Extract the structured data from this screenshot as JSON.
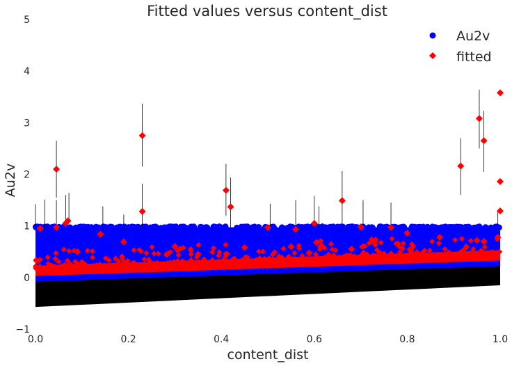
{
  "chart_data": {
    "type": "scatter",
    "title": "Fitted values versus content_dist",
    "xlabel": "content_dist",
    "ylabel": "Au2v",
    "xlim": [
      0.0,
      1.0
    ],
    "ylim": [
      -1,
      5
    ],
    "xticks": [
      "0.0",
      "0.2",
      "0.4",
      "0.6",
      "0.8",
      "1.0"
    ],
    "yticks": [
      "−1",
      "0",
      "1",
      "2",
      "3",
      "4",
      "5"
    ],
    "grid": false,
    "legend_position": "top-right",
    "series": [
      {
        "name": "Au2v",
        "marker": "circle",
        "color": "#0000ff",
        "description_band": {
          "y_min_at_x0": -0.08,
          "y_min_at_x1": 0.22,
          "y_max": 1.0
        }
      },
      {
        "name": "fitted",
        "marker": "diamond",
        "color": "#ff0000",
        "baseline_at_x0": 0.03,
        "baseline_at_x1": 0.33,
        "outliers": [
          {
            "x": 0.045,
            "y": 2.1
          },
          {
            "x": 0.23,
            "y": 2.75
          },
          {
            "x": 0.23,
            "y": 1.28
          },
          {
            "x": 0.41,
            "y": 1.69
          },
          {
            "x": 0.42,
            "y": 1.37
          },
          {
            "x": 0.66,
            "y": 1.49
          },
          {
            "x": 0.915,
            "y": 2.16
          },
          {
            "x": 0.955,
            "y": 3.08
          },
          {
            "x": 0.965,
            "y": 2.65
          },
          {
            "x": 1.0,
            "y": 3.58
          },
          {
            "x": 1.0,
            "y": 1.86
          },
          {
            "x": 1.0,
            "y": 1.29
          },
          {
            "x": 0.01,
            "y": 0.95
          },
          {
            "x": 0.045,
            "y": 0.97
          },
          {
            "x": 0.065,
            "y": 1.05
          },
          {
            "x": 0.07,
            "y": 1.1
          },
          {
            "x": 0.5,
            "y": 0.97
          },
          {
            "x": 0.56,
            "y": 0.93
          },
          {
            "x": 0.6,
            "y": 1.05
          },
          {
            "x": 0.7,
            "y": 0.98
          },
          {
            "x": 0.765,
            "y": 0.97
          },
          {
            "x": 0.14,
            "y": 0.84
          },
          {
            "x": 0.19,
            "y": 0.69
          },
          {
            "x": 0.09,
            "y": 0.5
          },
          {
            "x": 0.3,
            "y": 0.6
          },
          {
            "x": 0.35,
            "y": 0.45
          },
          {
            "x": 0.45,
            "y": 0.58
          },
          {
            "x": 0.55,
            "y": 0.6
          },
          {
            "x": 0.605,
            "y": 0.68
          },
          {
            "x": 0.615,
            "y": 0.62
          },
          {
            "x": 0.68,
            "y": 0.55
          },
          {
            "x": 0.73,
            "y": 0.7
          },
          {
            "x": 0.8,
            "y": 0.86
          },
          {
            "x": 0.87,
            "y": 0.78
          },
          {
            "x": 0.95,
            "y": 0.72
          },
          {
            "x": 0.965,
            "y": 0.7
          },
          {
            "x": 0.995,
            "y": 0.78
          }
        ]
      }
    ],
    "error_band": {
      "color": "#000000",
      "lower_at_x0": -0.57,
      "lower_at_x1": -0.15
    },
    "error_bars": [
      {
        "x": 0.0,
        "lo": 0.96,
        "hi": 1.42
      },
      {
        "x": 0.02,
        "lo": 0.96,
        "hi": 1.51
      },
      {
        "x": 0.045,
        "lo": 1.55,
        "hi": 2.65
      },
      {
        "x": 0.045,
        "lo": 0.98,
        "hi": 1.5
      },
      {
        "x": 0.065,
        "lo": 1.05,
        "hi": 1.6
      },
      {
        "x": 0.072,
        "lo": 1.1,
        "hi": 1.64
      },
      {
        "x": 0.145,
        "lo": 0.9,
        "hi": 1.38
      },
      {
        "x": 0.19,
        "lo": 0.9,
        "hi": 1.22
      },
      {
        "x": 0.23,
        "lo": 2.15,
        "hi": 3.37
      },
      {
        "x": 0.23,
        "lo": 0.96,
        "hi": 1.82
      },
      {
        "x": 0.41,
        "lo": 1.2,
        "hi": 2.2
      },
      {
        "x": 0.42,
        "lo": 0.96,
        "hi": 1.94
      },
      {
        "x": 0.505,
        "lo": 0.96,
        "hi": 1.43
      },
      {
        "x": 0.56,
        "lo": 0.96,
        "hi": 1.5
      },
      {
        "x": 0.6,
        "lo": 0.96,
        "hi": 1.58
      },
      {
        "x": 0.61,
        "lo": 0.96,
        "hi": 1.38
      },
      {
        "x": 0.66,
        "lo": 0.96,
        "hi": 2.06
      },
      {
        "x": 0.705,
        "lo": 0.96,
        "hi": 1.5
      },
      {
        "x": 0.765,
        "lo": 0.96,
        "hi": 1.45
      },
      {
        "x": 0.915,
        "lo": 1.6,
        "hi": 2.7
      },
      {
        "x": 0.955,
        "lo": 2.5,
        "hi": 3.64
      },
      {
        "x": 0.965,
        "lo": 2.05,
        "hi": 3.23
      },
      {
        "x": 0.995,
        "lo": 0.96,
        "hi": 1.3
      }
    ]
  }
}
